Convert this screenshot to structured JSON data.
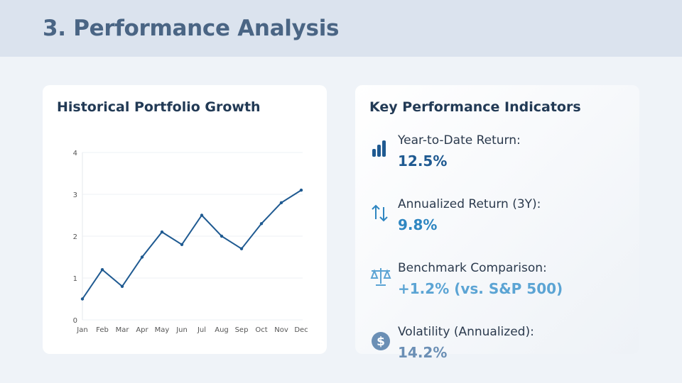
{
  "header": {
    "title": "3. Performance Analysis"
  },
  "chart_panel": {
    "title": "Historical Portfolio Growth"
  },
  "chart_data": {
    "type": "line",
    "categories": [
      "Jan",
      "Feb",
      "Mar",
      "Apr",
      "May",
      "Jun",
      "Jul",
      "Aug",
      "Sep",
      "Oct",
      "Nov",
      "Dec"
    ],
    "values": [
      0.5,
      1.2,
      0.8,
      1.5,
      2.1,
      1.8,
      2.5,
      2.0,
      1.7,
      2.3,
      2.8,
      3.1
    ],
    "ylim": [
      0,
      4
    ],
    "yticks": [
      "0",
      "1",
      "2",
      "3",
      "4"
    ],
    "grid": true,
    "color": "#1f5a91",
    "title": "",
    "xlabel": "",
    "ylabel": ""
  },
  "kpi_panel": {
    "title": "Key Performance Indicators",
    "items": [
      {
        "icon": "bar-chart-icon",
        "label": "Year-to-Date Return:",
        "value": "12.5%",
        "color": "#1f5a91"
      },
      {
        "icon": "arrows-up-down-icon",
        "label": "Annualized Return (3Y):",
        "value": "9.8%",
        "color": "#2e86c1"
      },
      {
        "icon": "balance-scale-icon",
        "label": "Benchmark Comparison:",
        "value": "+1.2% (vs. S&P 500)",
        "color": "#5ba4d4"
      },
      {
        "icon": "dollar-circle-icon",
        "label": "Volatility (Annualized):",
        "value": "14.2%",
        "color": "#6b8fb5"
      }
    ]
  }
}
